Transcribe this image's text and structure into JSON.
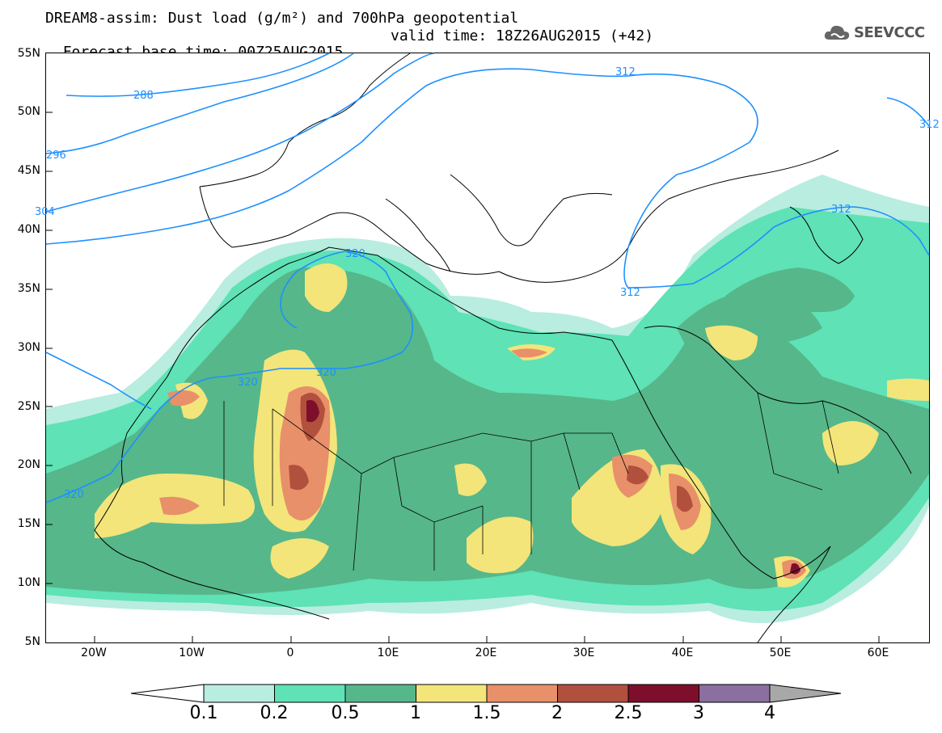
{
  "title": {
    "line1": "DREAM8-assim: Dust load (g/m²) and 700hPa geopotential",
    "line2_base": "Forecast base time: 00Z25AUG2015",
    "line2_valid": "valid time: 18Z26AUG2015 (+42)"
  },
  "logo": {
    "text": "SEEVCCC",
    "icon": "cloud-icon"
  },
  "axes": {
    "lat_labels": [
      "55N",
      "50N",
      "45N",
      "40N",
      "35N",
      "30N",
      "25N",
      "20N",
      "15N",
      "10N",
      "5N"
    ],
    "lon_labels": [
      "20W",
      "10W",
      "0",
      "10E",
      "20E",
      "30E",
      "40E",
      "50E",
      "60E"
    ]
  },
  "contours": {
    "labels": [
      "288",
      "296",
      "304",
      "312",
      "312",
      "312",
      "312",
      "320",
      "320",
      "320",
      "320"
    ],
    "color": "#1e90ff"
  },
  "colorbar": {
    "labels": [
      "0.1",
      "0.2",
      "0.5",
      "1",
      "1.5",
      "2",
      "2.5",
      "3",
      "4"
    ],
    "colors": [
      "#ffffff",
      "#b8ede0",
      "#5fe2b5",
      "#56b78a",
      "#f3e57a",
      "#e8906a",
      "#b2503e",
      "#7d0f2c",
      "#8a6fa0",
      "#a8a8a8"
    ]
  }
}
